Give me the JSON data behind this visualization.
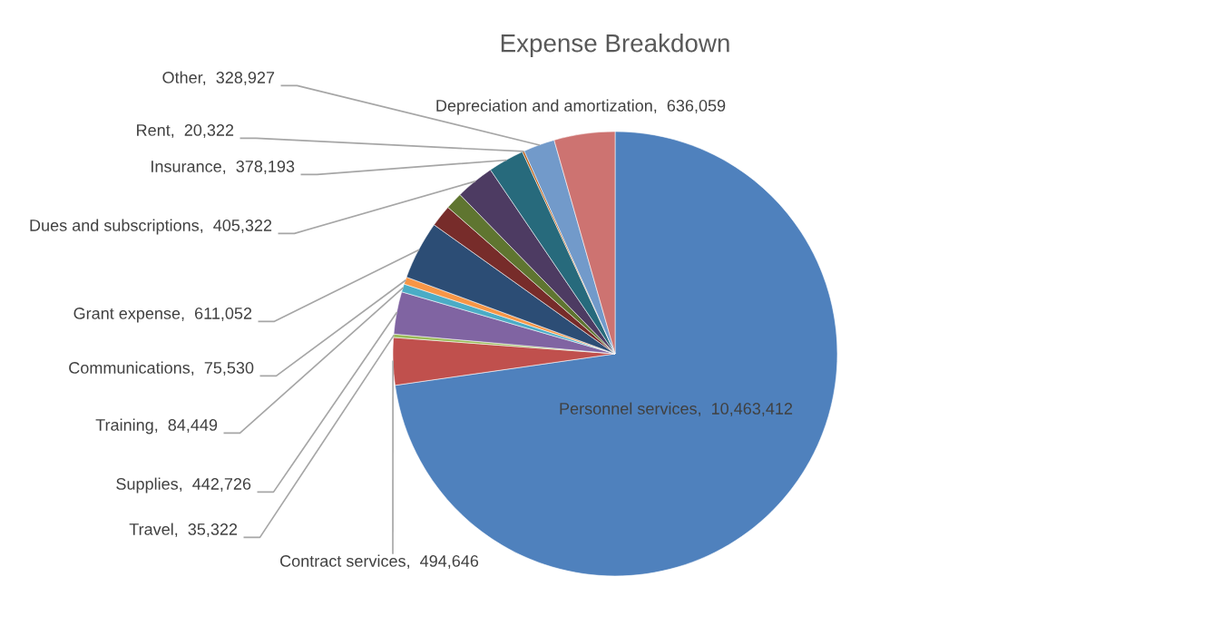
{
  "chart_data": {
    "type": "pie",
    "title": "Expense Breakdown",
    "categories": [
      "Personnel services",
      "Contract services",
      "Travel",
      "Supplies",
      "Training",
      "Communications",
      "Grant expense",
      null,
      null,
      "Dues and subscriptions",
      "Insurance",
      "Rent",
      "Other",
      "Depreciation and amortization"
    ],
    "values": [
      10463412,
      494646,
      35322,
      442726,
      84449,
      75530,
      611052,
      230000,
      180000,
      405322,
      378193,
      20322,
      328927,
      636059
    ],
    "value_labels": [
      "10,463,412",
      "494,646",
      "35,322",
      "442,726",
      "84,449",
      "75,530",
      "611,052",
      null,
      null,
      "405,322",
      "378,193",
      "20,322",
      "328,927",
      "636,059"
    ],
    "colors": [
      "#4f81bd",
      "#c0504d",
      "#9bbb59",
      "#8064a2",
      "#4bacc6",
      "#f79646",
      "#2c4d75",
      "#772c2a",
      "#5f7530",
      "#4d3b62",
      "#276a7c",
      "#b65708",
      "#729aca",
      "#cd7371"
    ]
  }
}
